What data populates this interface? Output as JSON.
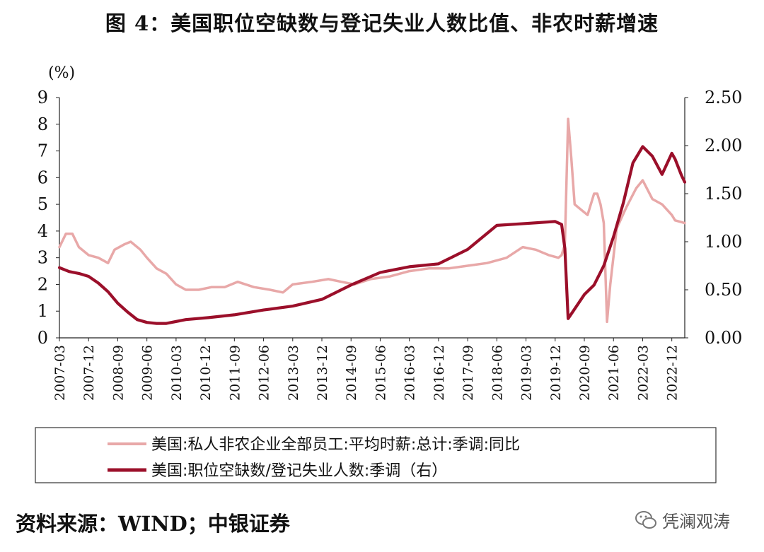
{
  "title": "图 4：美国职位空缺数与登记失业人数比值、非农时薪增速",
  "source": "资料来源：WIND；中银证券",
  "watermark": "凭澜观涛",
  "watermark_icon": "wechat-icon",
  "chart_data": {
    "type": "line",
    "left_axis_unit": "(%)",
    "ylim_left": [
      0,
      9
    ],
    "yticks_left": [
      "0",
      "1",
      "2",
      "3",
      "4",
      "5",
      "6",
      "7",
      "8",
      "9"
    ],
    "ylim_right": [
      0,
      2.5
    ],
    "yticks_right": [
      "0.00",
      "0.50",
      "1.00",
      "1.50",
      "2.00",
      "2.50"
    ],
    "x_tick_labels": [
      "2007-03",
      "2007-12",
      "2008-09",
      "2009-06",
      "2010-03",
      "2010-12",
      "2011-09",
      "2012-06",
      "2013-03",
      "2013-12",
      "2014-09",
      "2015-06",
      "2016-03",
      "2016-12",
      "2017-09",
      "2018-06",
      "2019-03",
      "2019-12",
      "2020-09",
      "2021-06",
      "2022-03",
      "2022-12"
    ],
    "x_range": [
      "2007-03",
      "2023-04"
    ],
    "grid": false,
    "legend_position": "bottom",
    "series": [
      {
        "name": "美国:私人非农企业全部员工:平均时薪:总计:季调:同比",
        "axis": "left",
        "color": "#e8a8a8",
        "points": [
          [
            "2007-03",
            3.4
          ],
          [
            "2007-05",
            3.9
          ],
          [
            "2007-07",
            3.9
          ],
          [
            "2007-09",
            3.4
          ],
          [
            "2007-12",
            3.1
          ],
          [
            "2008-03",
            3.0
          ],
          [
            "2008-06",
            2.8
          ],
          [
            "2008-08",
            3.3
          ],
          [
            "2008-11",
            3.5
          ],
          [
            "2009-01",
            3.6
          ],
          [
            "2009-04",
            3.3
          ],
          [
            "2009-06",
            3.0
          ],
          [
            "2009-09",
            2.6
          ],
          [
            "2009-12",
            2.4
          ],
          [
            "2010-03",
            2.0
          ],
          [
            "2010-06",
            1.8
          ],
          [
            "2010-10",
            1.8
          ],
          [
            "2011-02",
            1.9
          ],
          [
            "2011-06",
            1.9
          ],
          [
            "2011-10",
            2.1
          ],
          [
            "2012-03",
            1.9
          ],
          [
            "2012-08",
            1.8
          ],
          [
            "2012-12",
            1.7
          ],
          [
            "2013-03",
            2.0
          ],
          [
            "2013-09",
            2.1
          ],
          [
            "2014-02",
            2.2
          ],
          [
            "2014-06",
            2.1
          ],
          [
            "2014-10",
            2.0
          ],
          [
            "2015-03",
            2.2
          ],
          [
            "2015-09",
            2.3
          ],
          [
            "2016-03",
            2.5
          ],
          [
            "2016-09",
            2.6
          ],
          [
            "2017-03",
            2.6
          ],
          [
            "2017-09",
            2.7
          ],
          [
            "2018-03",
            2.8
          ],
          [
            "2018-09",
            3.0
          ],
          [
            "2019-02",
            3.4
          ],
          [
            "2019-06",
            3.3
          ],
          [
            "2019-10",
            3.1
          ],
          [
            "2020-01",
            3.0
          ],
          [
            "2020-02",
            3.1
          ],
          [
            "2020-03",
            3.5
          ],
          [
            "2020-04",
            8.2
          ],
          [
            "2020-05",
            6.7
          ],
          [
            "2020-06",
            5.0
          ],
          [
            "2020-08",
            4.8
          ],
          [
            "2020-10",
            4.6
          ],
          [
            "2020-12",
            5.4
          ],
          [
            "2021-01",
            5.4
          ],
          [
            "2021-02",
            5.0
          ],
          [
            "2021-03",
            4.3
          ],
          [
            "2021-04",
            0.6
          ],
          [
            "2021-05",
            2.0
          ],
          [
            "2021-07",
            4.1
          ],
          [
            "2021-10",
            4.9
          ],
          [
            "2022-01",
            5.6
          ],
          [
            "2022-03",
            5.9
          ],
          [
            "2022-06",
            5.2
          ],
          [
            "2022-09",
            5.0
          ],
          [
            "2022-12",
            4.6
          ],
          [
            "2023-01",
            4.4
          ],
          [
            "2023-04",
            4.3
          ]
        ]
      },
      {
        "name": "美国:职位空缺数/登记失业人数:季调（右）",
        "axis": "right",
        "color": "#9b0f2a",
        "points": [
          [
            "2007-03",
            0.73
          ],
          [
            "2007-06",
            0.69
          ],
          [
            "2007-09",
            0.67
          ],
          [
            "2007-12",
            0.64
          ],
          [
            "2008-03",
            0.57
          ],
          [
            "2008-06",
            0.48
          ],
          [
            "2008-09",
            0.36
          ],
          [
            "2008-12",
            0.27
          ],
          [
            "2009-03",
            0.19
          ],
          [
            "2009-06",
            0.16
          ],
          [
            "2009-09",
            0.15
          ],
          [
            "2009-12",
            0.15
          ],
          [
            "2010-06",
            0.19
          ],
          [
            "2011-01",
            0.21
          ],
          [
            "2011-09",
            0.24
          ],
          [
            "2012-06",
            0.29
          ],
          [
            "2013-03",
            0.33
          ],
          [
            "2013-12",
            0.4
          ],
          [
            "2014-09",
            0.55
          ],
          [
            "2015-06",
            0.68
          ],
          [
            "2016-03",
            0.74
          ],
          [
            "2016-12",
            0.77
          ],
          [
            "2017-09",
            0.92
          ],
          [
            "2018-06",
            1.17
          ],
          [
            "2019-03",
            1.19
          ],
          [
            "2019-12",
            1.21
          ],
          [
            "2020-02",
            1.18
          ],
          [
            "2020-03",
            0.93
          ],
          [
            "2020-04",
            0.2
          ],
          [
            "2020-06",
            0.3
          ],
          [
            "2020-09",
            0.45
          ],
          [
            "2020-12",
            0.55
          ],
          [
            "2021-03",
            0.75
          ],
          [
            "2021-06",
            1.05
          ],
          [
            "2021-09",
            1.4
          ],
          [
            "2021-12",
            1.82
          ],
          [
            "2022-03",
            1.99
          ],
          [
            "2022-06",
            1.89
          ],
          [
            "2022-09",
            1.7
          ],
          [
            "2022-12",
            1.92
          ],
          [
            "2023-01",
            1.86
          ],
          [
            "2023-03",
            1.69
          ],
          [
            "2023-04",
            1.62
          ]
        ]
      }
    ]
  }
}
